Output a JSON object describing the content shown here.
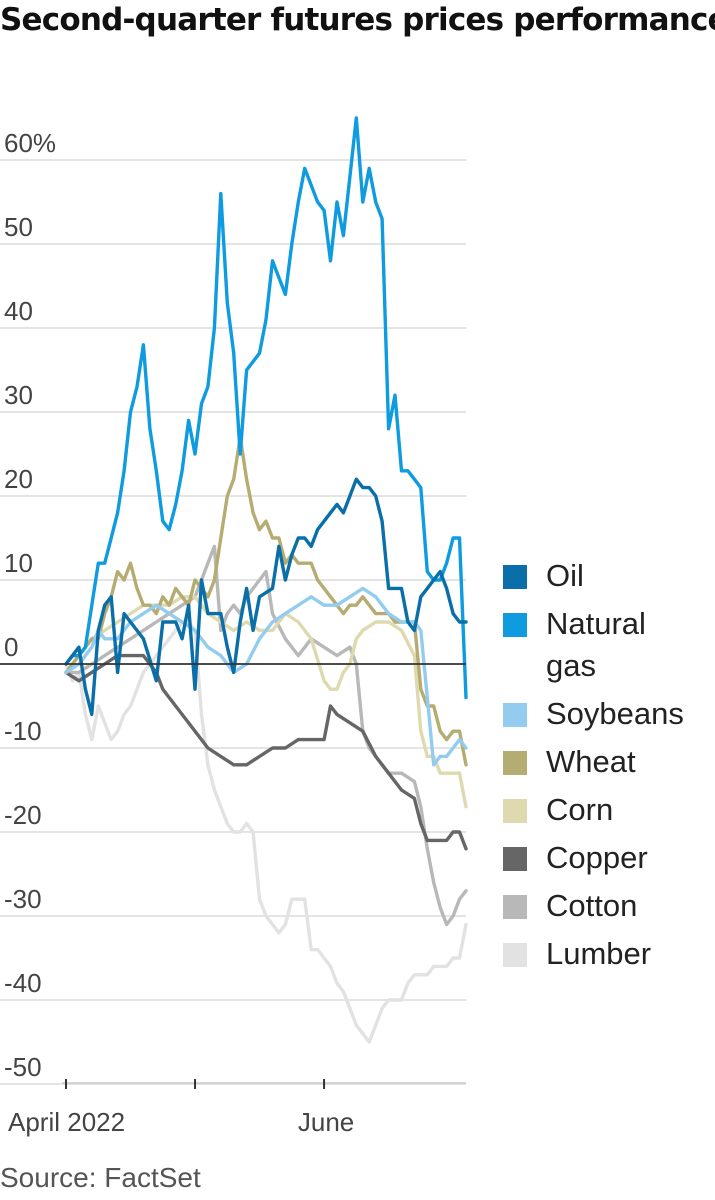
{
  "title": "Second-quarter futures prices performance",
  "source": "Source: FactSet",
  "chart_data": {
    "type": "line",
    "ylim": [
      -50,
      65
    ],
    "y_unit_label": "60%",
    "yticks": [
      60,
      50,
      40,
      30,
      20,
      10,
      0,
      -10,
      -20,
      -30,
      -40,
      -50
    ],
    "ytick_labels": [
      "60%",
      "50",
      "40",
      "30",
      "20",
      "10",
      "0",
      "-10",
      "-20",
      "-30",
      "-40",
      "-50"
    ],
    "x_range": [
      0,
      62
    ],
    "x_ticks": [
      {
        "x": 0,
        "label": "April 2022"
      },
      {
        "x": 20,
        "label": ""
      },
      {
        "x": 40,
        "label": "June"
      }
    ],
    "zero_line": true,
    "series": [
      {
        "name": "Oil",
        "color": "#0a6fa8",
        "width": 3.4,
        "x": [
          0,
          2,
          3,
          4,
          5,
          6,
          7,
          8,
          9,
          10,
          12,
          14,
          15,
          17,
          18,
          19,
          20,
          21,
          22,
          24,
          25,
          26,
          27,
          28,
          29,
          30,
          32,
          33,
          34,
          35,
          36,
          37,
          38,
          39,
          40,
          41,
          42,
          43,
          44,
          45,
          46,
          47,
          48,
          49,
          50,
          51,
          52,
          53,
          54,
          55,
          56,
          57,
          58,
          59,
          60,
          61,
          62
        ],
        "y": [
          0,
          2,
          -3,
          -6,
          4,
          7,
          8,
          -1,
          6,
          5,
          3,
          -2,
          5,
          5,
          3,
          7,
          -3,
          10,
          6,
          6,
          2,
          -1,
          5,
          9,
          4,
          8,
          9,
          14,
          10,
          13,
          15,
          15,
          14,
          16,
          17,
          18,
          19,
          18,
          20,
          22,
          21,
          21,
          20,
          17,
          9,
          9,
          9,
          5,
          4,
          8,
          9,
          10,
          11,
          9,
          6,
          5,
          5
        ]
      },
      {
        "name": "Natural gas",
        "color": "#0f9be0",
        "width": 3.4,
        "x": [
          0,
          1,
          2,
          3,
          4,
          5,
          6,
          7,
          8,
          9,
          10,
          11,
          12,
          13,
          14,
          15,
          16,
          17,
          18,
          19,
          20,
          21,
          22,
          23,
          24,
          25,
          26,
          27,
          28,
          29,
          30,
          31,
          32,
          33,
          34,
          35,
          36,
          37,
          38,
          39,
          40,
          41,
          42,
          43,
          44,
          45,
          46,
          47,
          48,
          49,
          50,
          51,
          52,
          53,
          54,
          55,
          56,
          57,
          58,
          59,
          60,
          61,
          62
        ],
        "y": [
          0,
          1,
          1,
          2,
          7,
          12,
          12,
          15,
          18,
          23,
          30,
          33,
          38,
          28,
          23,
          17,
          16,
          19,
          23,
          29,
          25,
          31,
          33,
          40,
          56,
          43,
          37,
          25,
          35,
          36,
          37,
          41,
          48,
          46,
          44,
          50,
          55,
          59,
          57,
          55,
          54,
          48,
          55,
          51,
          58,
          65,
          55,
          59,
          55,
          53,
          28,
          32,
          23,
          23,
          22,
          21,
          11,
          10,
          10,
          12,
          15,
          15,
          -4
        ]
      },
      {
        "name": "Soybeans",
        "color": "#94ccf0",
        "width": 3.4,
        "x": [
          0,
          2,
          3,
          4,
          5,
          6,
          8,
          10,
          12,
          14,
          16,
          18,
          20,
          22,
          24,
          26,
          28,
          30,
          32,
          34,
          36,
          38,
          40,
          42,
          44,
          46,
          48,
          50,
          52,
          54,
          55,
          56,
          57,
          58,
          59,
          60,
          61,
          62
        ],
        "y": [
          -1,
          0,
          1,
          2,
          4,
          3,
          3,
          5,
          6,
          7,
          6,
          5,
          4,
          2,
          1,
          -1,
          0,
          3,
          5,
          6,
          7,
          8,
          7,
          7,
          8,
          9,
          8,
          6,
          5,
          5,
          4,
          -4,
          -12,
          -11,
          -11,
          -10,
          -9,
          -10
        ]
      },
      {
        "name": "Wheat",
        "color": "#b5ac72",
        "width": 3.4,
        "x": [
          0,
          2,
          4,
          5,
          6,
          7,
          8,
          9,
          10,
          11,
          12,
          13,
          14,
          15,
          16,
          17,
          18,
          19,
          20,
          21,
          22,
          23,
          24,
          25,
          26,
          27,
          28,
          29,
          30,
          31,
          32,
          33,
          34,
          35,
          36,
          37,
          38,
          39,
          40,
          41,
          42,
          43,
          44,
          45,
          46,
          47,
          48,
          49,
          50,
          51,
          52,
          53,
          54,
          55,
          56,
          57,
          58,
          59,
          60,
          61,
          62
        ],
        "y": [
          -1,
          1,
          3,
          3,
          6,
          8,
          11,
          10,
          12,
          9,
          7,
          7,
          6,
          8,
          7,
          9,
          8,
          7,
          10,
          9,
          8,
          10,
          15,
          20,
          22,
          27,
          22,
          18,
          16,
          17,
          15,
          15,
          12,
          13,
          12,
          12,
          12,
          10,
          9,
          8,
          7,
          6,
          7,
          7,
          8,
          7,
          6,
          6,
          6,
          5,
          5,
          5,
          5,
          -3,
          -5,
          -5,
          -8,
          -9,
          -8,
          -8,
          -12
        ]
      },
      {
        "name": "Corn",
        "color": "#dfd9b0",
        "width": 3.4,
        "x": [
          0,
          2,
          4,
          6,
          8,
          10,
          12,
          14,
          16,
          18,
          20,
          22,
          24,
          26,
          28,
          30,
          32,
          34,
          36,
          38,
          40,
          41,
          42,
          43,
          44,
          45,
          46,
          48,
          50,
          52,
          54,
          55,
          56,
          57,
          58,
          59,
          60,
          61,
          62
        ],
        "y": [
          -1,
          1,
          3,
          4,
          5,
          6,
          7,
          7,
          7,
          8,
          8,
          6,
          5,
          4,
          5,
          4,
          4,
          6,
          5,
          3,
          -2,
          -3,
          -3,
          -1,
          0,
          3,
          4,
          5,
          5,
          4,
          1,
          -8,
          -11,
          -11,
          -13,
          -13,
          -13,
          -13,
          -17
        ]
      },
      {
        "name": "Copper",
        "color": "#666666",
        "width": 3.4,
        "x": [
          0,
          2,
          4,
          6,
          8,
          10,
          12,
          14,
          15,
          16,
          18,
          20,
          22,
          24,
          26,
          28,
          30,
          32,
          34,
          36,
          38,
          40,
          41,
          42,
          44,
          46,
          48,
          50,
          52,
          54,
          55,
          56,
          57,
          58,
          59,
          60,
          61,
          62
        ],
        "y": [
          -1,
          -2,
          -1,
          0,
          1,
          1,
          1,
          -1,
          -3,
          -4,
          -6,
          -8,
          -10,
          -11,
          -12,
          -12,
          -11,
          -10,
          -10,
          -9,
          -9,
          -9,
          -5,
          -6,
          -7,
          -8,
          -11,
          -13,
          -15,
          -16,
          -19,
          -21,
          -21,
          -21,
          -21,
          -20,
          -20,
          -22
        ]
      },
      {
        "name": "Cotton",
        "color": "#b8b8b8",
        "width": 3.4,
        "x": [
          0,
          2,
          4,
          6,
          8,
          10,
          12,
          14,
          16,
          18,
          20,
          21,
          22,
          23,
          24,
          25,
          26,
          27,
          28,
          29,
          30,
          31,
          32,
          34,
          36,
          38,
          40,
          42,
          44,
          45,
          46,
          47,
          48,
          50,
          52,
          54,
          55,
          56,
          57,
          58,
          59,
          60,
          61,
          62
        ],
        "y": [
          -1,
          -1,
          0,
          1,
          2,
          3,
          4,
          5,
          6,
          7,
          8,
          10,
          12,
          14,
          4,
          6,
          7,
          6,
          8,
          9,
          10,
          11,
          6,
          3,
          1,
          3,
          2,
          1,
          2,
          0,
          -8,
          -10,
          -11,
          -13,
          -13,
          -14,
          -17,
          -22,
          -26,
          -29,
          -31,
          -30,
          -28,
          -27
        ]
      },
      {
        "name": "Lumber",
        "color": "#e2e2e2",
        "width": 3.4,
        "x": [
          0,
          1,
          2,
          3,
          4,
          5,
          6,
          7,
          8,
          9,
          10,
          11,
          12,
          13,
          14,
          15,
          16,
          17,
          18,
          19,
          20,
          21,
          22,
          23,
          24,
          25,
          26,
          27,
          28,
          29,
          30,
          31,
          32,
          33,
          34,
          35,
          36,
          37,
          38,
          39,
          40,
          41,
          42,
          43,
          44,
          45,
          46,
          47,
          48,
          49,
          50,
          51,
          52,
          53,
          54,
          55,
          56,
          57,
          58,
          59,
          60,
          61,
          62
        ],
        "y": [
          0,
          -2,
          -1,
          -6,
          -9,
          -5,
          -7,
          -9,
          -8,
          -6,
          -5,
          -3,
          -1,
          0,
          1,
          2,
          3,
          4,
          5,
          5,
          4,
          -6,
          -12,
          -15,
          -17,
          -19,
          -20,
          -20,
          -19,
          -20,
          -28,
          -30,
          -31,
          -32,
          -31,
          -28,
          -28,
          -28,
          -34,
          -34,
          -35,
          -36,
          -38,
          -39,
          -41,
          -43,
          -44,
          -45,
          -43,
          -41,
          -40,
          -40,
          -40,
          -38,
          -37,
          -37,
          -37,
          -36,
          -36,
          -36,
          -35,
          -35,
          -31
        ]
      }
    ],
    "legend": {
      "placement": "right",
      "entries": [
        "Oil",
        "Natural gas",
        "Soybeans",
        "Wheat",
        "Corn",
        "Copper",
        "Cotton",
        "Lumber"
      ]
    }
  }
}
